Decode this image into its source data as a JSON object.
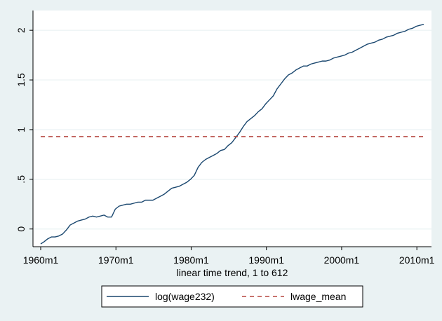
{
  "chart_data": {
    "type": "line",
    "title": "",
    "xlabel": "linear time trend, 1 to 612",
    "ylabel": "",
    "x_ticks": [
      {
        "t": 1,
        "label": "1960m1"
      },
      {
        "t": 121,
        "label": "1970m1"
      },
      {
        "t": 241,
        "label": "1980m1"
      },
      {
        "t": 361,
        "label": "1990m1"
      },
      {
        "t": 481,
        "label": "2000m1"
      },
      {
        "t": 601,
        "label": "2010m1"
      }
    ],
    "y_ticks": [
      {
        "v": 0,
        "label": "0"
      },
      {
        "v": 0.5,
        "label": ".5"
      },
      {
        "v": 1,
        "label": "1"
      },
      {
        "v": 1.5,
        "label": "1.5"
      },
      {
        "v": 2,
        "label": "2"
      }
    ],
    "xlim": [
      1,
      612
    ],
    "ylim": [
      -0.15,
      2.1
    ],
    "grid": true,
    "legend_position": "bottom",
    "series": [
      {
        "name": "log(wage232)",
        "style": "solid",
        "color": "#1a476f",
        "x": [
          1,
          6,
          12,
          18,
          24,
          30,
          36,
          42,
          48,
          54,
          60,
          66,
          72,
          78,
          84,
          90,
          96,
          102,
          108,
          114,
          120,
          126,
          132,
          138,
          144,
          150,
          156,
          162,
          168,
          174,
          180,
          186,
          192,
          198,
          204,
          210,
          216,
          222,
          228,
          234,
          240,
          246,
          252,
          258,
          264,
          270,
          276,
          282,
          288,
          294,
          300,
          306,
          312,
          318,
          324,
          330,
          336,
          342,
          348,
          354,
          360,
          366,
          372,
          378,
          384,
          390,
          396,
          402,
          408,
          414,
          420,
          426,
          432,
          438,
          444,
          450,
          456,
          462,
          468,
          474,
          480,
          486,
          492,
          498,
          504,
          510,
          516,
          522,
          528,
          534,
          540,
          546,
          552,
          558,
          564,
          570,
          576,
          582,
          588,
          594,
          600,
          606,
          612
        ],
        "y": [
          -0.15,
          -0.13,
          -0.1,
          -0.08,
          -0.08,
          -0.07,
          -0.05,
          -0.01,
          0.04,
          0.06,
          0.08,
          0.09,
          0.1,
          0.12,
          0.13,
          0.12,
          0.13,
          0.14,
          0.12,
          0.12,
          0.2,
          0.23,
          0.24,
          0.25,
          0.25,
          0.26,
          0.27,
          0.27,
          0.29,
          0.29,
          0.29,
          0.31,
          0.33,
          0.35,
          0.38,
          0.41,
          0.42,
          0.43,
          0.45,
          0.47,
          0.5,
          0.54,
          0.62,
          0.67,
          0.7,
          0.72,
          0.74,
          0.76,
          0.79,
          0.8,
          0.84,
          0.87,
          0.92,
          0.97,
          1.03,
          1.08,
          1.11,
          1.14,
          1.18,
          1.21,
          1.26,
          1.3,
          1.34,
          1.41,
          1.46,
          1.51,
          1.55,
          1.57,
          1.6,
          1.62,
          1.64,
          1.64,
          1.66,
          1.67,
          1.68,
          1.69,
          1.69,
          1.7,
          1.72,
          1.73,
          1.74,
          1.75,
          1.77,
          1.78,
          1.8,
          1.82,
          1.84,
          1.86,
          1.87,
          1.88,
          1.9,
          1.91,
          1.93,
          1.94,
          1.95,
          1.97,
          1.98,
          1.99,
          2.01,
          2.02,
          2.04,
          2.05,
          2.06
        ]
      },
      {
        "name": "lwage_mean",
        "style": "dashed",
        "color": "#b5453f",
        "x": [
          1,
          612
        ],
        "y": [
          0.93,
          0.93
        ]
      }
    ]
  }
}
